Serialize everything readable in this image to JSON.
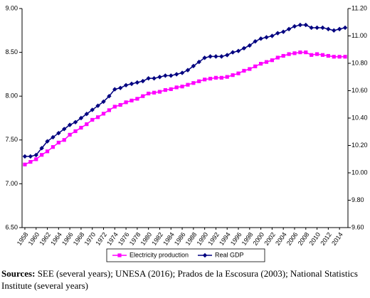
{
  "chart_data": {
    "type": "line",
    "x": [
      1958,
      1959,
      1960,
      1961,
      1962,
      1963,
      1964,
      1965,
      1966,
      1967,
      1968,
      1969,
      1970,
      1971,
      1972,
      1973,
      1974,
      1975,
      1976,
      1977,
      1978,
      1979,
      1980,
      1981,
      1982,
      1983,
      1984,
      1985,
      1986,
      1987,
      1988,
      1989,
      1990,
      1991,
      1992,
      1993,
      1994,
      1995,
      1996,
      1997,
      1998,
      1999,
      2000,
      2001,
      2002,
      2003,
      2004,
      2005,
      2006,
      2007,
      2008,
      2009,
      2010,
      2011,
      2012,
      2013,
      2014,
      2015
    ],
    "xlim": [
      1957.5,
      2015.5
    ],
    "xticks": [
      1958,
      1960,
      1962,
      1964,
      1966,
      1968,
      1970,
      1972,
      1974,
      1976,
      1978,
      1980,
      1982,
      1984,
      1986,
      1988,
      1990,
      1992,
      1994,
      1996,
      1998,
      2000,
      2002,
      2004,
      2006,
      2008,
      2010,
      2012,
      2014
    ],
    "ylim": [
      6.5,
      9.0
    ],
    "yticks": [
      {
        "value": 6.5,
        "label": "6.50"
      },
      {
        "value": 7.0,
        "label": "7.00"
      },
      {
        "value": 7.5,
        "label": "7.50"
      },
      {
        "value": 8.0,
        "label": "8.00"
      },
      {
        "value": 8.5,
        "label": "8.50"
      },
      {
        "value": 9.0,
        "label": "9.00"
      }
    ],
    "y2lim": [
      9.6,
      11.2
    ],
    "y2ticks": [
      {
        "value": 9.6,
        "label": "9.60"
      },
      {
        "value": 9.8,
        "label": "9.80"
      },
      {
        "value": 10.0,
        "label": "10.00"
      },
      {
        "value": 10.2,
        "label": "10.20"
      },
      {
        "value": 10.4,
        "label": "10.40"
      },
      {
        "value": 10.6,
        "label": "10.60"
      },
      {
        "value": 10.8,
        "label": "10.80"
      },
      {
        "value": 11.0,
        "label": "11.00"
      },
      {
        "value": 11.2,
        "label": "11.20"
      }
    ],
    "series": [
      {
        "name": "Electricity production",
        "color": "#ff00ff",
        "marker": "square",
        "values": [
          7.22,
          7.25,
          7.28,
          7.33,
          7.37,
          7.42,
          7.47,
          7.5,
          7.56,
          7.6,
          7.64,
          7.68,
          7.73,
          7.76,
          7.8,
          7.84,
          7.88,
          7.9,
          7.93,
          7.95,
          7.97,
          8.0,
          8.03,
          8.04,
          8.05,
          8.07,
          8.08,
          8.1,
          8.11,
          8.13,
          8.15,
          8.17,
          8.19,
          8.2,
          8.21,
          8.21,
          8.22,
          8.24,
          8.26,
          8.29,
          8.31,
          8.34,
          8.37,
          8.39,
          8.41,
          8.44,
          8.46,
          8.48,
          8.49,
          8.5,
          8.5,
          8.47,
          8.48,
          8.47,
          8.46,
          8.45,
          8.45,
          8.45
        ]
      },
      {
        "name": "Real GDP",
        "color": "#000080",
        "marker": "diamond",
        "axis": "y2",
        "values": [
          10.12,
          10.12,
          10.13,
          10.18,
          10.23,
          10.26,
          10.29,
          10.32,
          10.35,
          10.37,
          10.4,
          10.43,
          10.46,
          10.49,
          10.52,
          10.56,
          10.61,
          10.62,
          10.64,
          10.65,
          10.66,
          10.67,
          10.69,
          10.69,
          10.7,
          10.71,
          10.71,
          10.72,
          10.73,
          10.75,
          10.78,
          10.81,
          10.84,
          10.85,
          10.85,
          10.85,
          10.86,
          10.88,
          10.89,
          10.91,
          10.93,
          10.96,
          10.98,
          10.99,
          11.0,
          11.02,
          11.03,
          11.05,
          11.07,
          11.08,
          11.08,
          11.06,
          11.06,
          11.06,
          11.05,
          11.04,
          11.05,
          11.06
        ]
      }
    ]
  },
  "source_label": "Sources:",
  "source_text": "SEE (several years); UNESA (2016); Prados de la Escosura (2003); National Statistics Institute (several years)"
}
